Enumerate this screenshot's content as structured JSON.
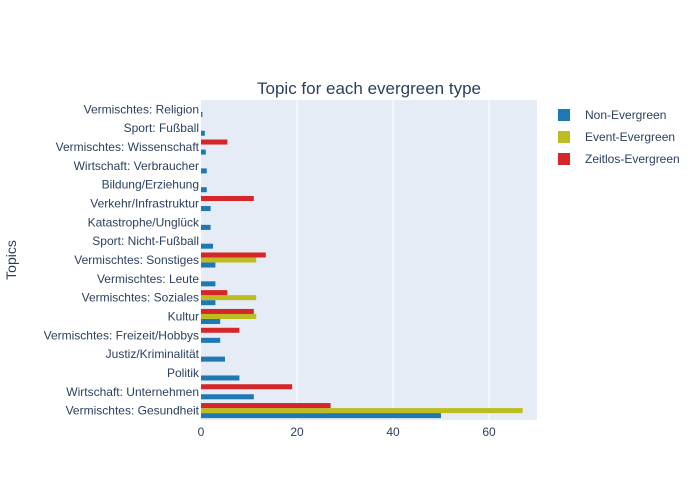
{
  "chart_data": {
    "type": "bar",
    "orientation": "horizontal",
    "barmode": "group",
    "title": "Topic for each evergreen type",
    "ylabel": "Topics",
    "xlabel": "",
    "xlim": [
      0,
      70
    ],
    "xticks": [
      0,
      20,
      40,
      60
    ],
    "grid": true,
    "legend_position": "right",
    "categories": [
      "Vermischtes: Gesundheit",
      "Wirtschaft: Unternehmen",
      "Politik",
      "Justiz/Kriminalität",
      "Vermischtes: Freizeit/Hobbys",
      "Kultur",
      "Vermischtes: Soziales",
      "Vermischtes: Leute",
      "Vermischtes: Sonstiges",
      "Sport: Nicht-Fußball",
      "Katastrophe/Unglück",
      "Verkehr/Infrastruktur",
      "Bildung/Erziehung",
      "Wirtschaft: Verbraucher",
      "Vermischtes: Wissenschaft",
      "Sport: Fußball",
      "Vermischtes: Religion"
    ],
    "series": [
      {
        "name": "Non-Evergreen",
        "color": "#1f77b4",
        "values": [
          50,
          11,
          8,
          5,
          4,
          4,
          3,
          3,
          3,
          2.5,
          2,
          2,
          1.2,
          1.2,
          1,
          0.8,
          0.3
        ]
      },
      {
        "name": "Event-Evergreen",
        "color": "#bcbd22",
        "values": [
          67,
          0,
          0,
          0,
          0,
          11.5,
          11.5,
          0,
          11.5,
          0,
          0,
          0,
          0,
          0,
          0,
          0,
          0
        ]
      },
      {
        "name": "Zeitlos-Evergreen",
        "color": "#d62728",
        "values": [
          27,
          19,
          0,
          0,
          8,
          11,
          5.5,
          0,
          13.5,
          0,
          0,
          11,
          0,
          0,
          5.5,
          0,
          0
        ]
      }
    ]
  }
}
